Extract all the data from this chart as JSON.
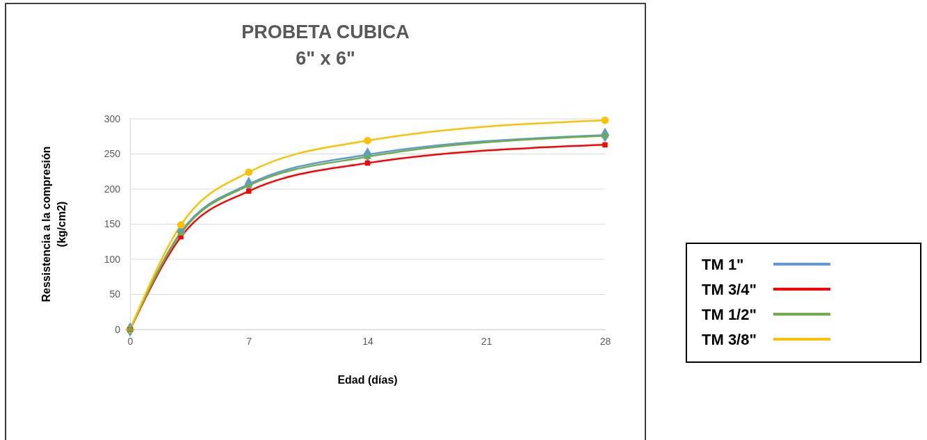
{
  "chart_data": {
    "type": "line",
    "title": "PROBETA CUBICA\n6\" x 6\"",
    "xlabel": "Edad (días)",
    "ylabel": "Ressistencia a la compresión\n(kg/cm2)",
    "x": [
      0,
      3,
      7,
      14,
      28
    ],
    "series": [
      {
        "name": "TM 1\"",
        "color": "#5b9bd5",
        "marker": "diamond",
        "values": [
          0,
          139,
          207,
          249,
          277
        ]
      },
      {
        "name": "TM 3/4\"",
        "color": "#ff0000",
        "marker": "square",
        "values": [
          0,
          132,
          197,
          237,
          263
        ]
      },
      {
        "name": "TM 1/2\"",
        "color": "#70ad47",
        "marker": "triangle",
        "values": [
          0,
          137,
          205,
          246,
          276
        ]
      },
      {
        "name": "TM 3/8\"",
        "color": "#ffc000",
        "marker": "circle",
        "values": [
          0,
          149,
          224,
          269,
          298
        ]
      }
    ],
    "xlim": [
      0,
      28
    ],
    "xticks": [
      0,
      7,
      14,
      21,
      28
    ],
    "ylim": [
      0,
      300
    ],
    "yticks": [
      0,
      50,
      100,
      150,
      200,
      250,
      300
    ],
    "grid": "y",
    "legend": "right",
    "line_style": "solid"
  }
}
